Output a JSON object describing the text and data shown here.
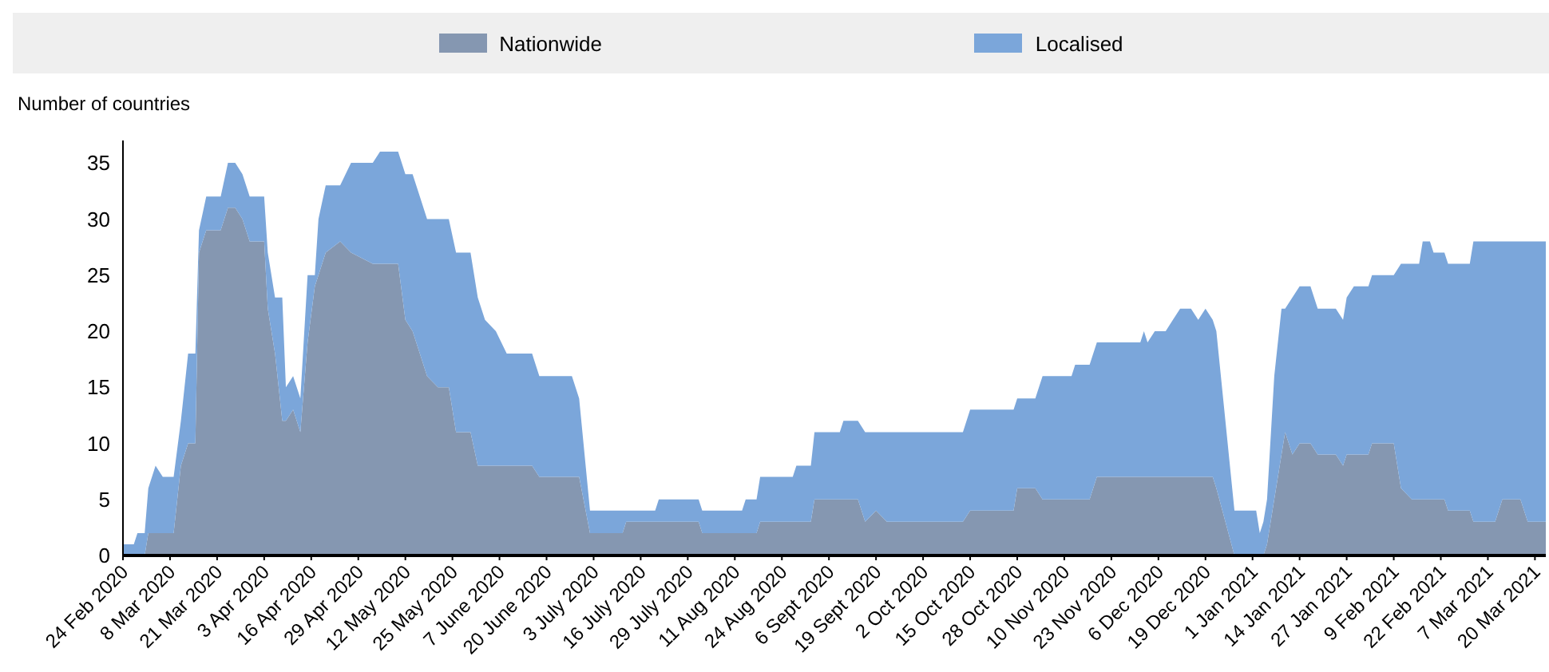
{
  "chart_data": {
    "type": "area",
    "stacked": true,
    "ylabel": "Number of countries",
    "legend": "top",
    "grid": false,
    "x": [
      "2020-02-24",
      "2020-02-27",
      "2020-02-28",
      "2020-03-01",
      "2020-03-02",
      "2020-03-04",
      "2020-03-06",
      "2020-03-09",
      "2020-03-11",
      "2020-03-13",
      "2020-03-15",
      "2020-03-16",
      "2020-03-18",
      "2020-03-22",
      "2020-03-24",
      "2020-03-26",
      "2020-03-28",
      "2020-03-30",
      "2020-04-03",
      "2020-04-04",
      "2020-04-06",
      "2020-04-08",
      "2020-04-09",
      "2020-04-11",
      "2020-04-13",
      "2020-04-15",
      "2020-04-17",
      "2020-04-18",
      "2020-04-20",
      "2020-04-24",
      "2020-04-27",
      "2020-05-03",
      "2020-05-05",
      "2020-05-10",
      "2020-05-12",
      "2020-05-14",
      "2020-05-16",
      "2020-05-18",
      "2020-05-21",
      "2020-05-24",
      "2020-05-26",
      "2020-05-30",
      "2020-06-01",
      "2020-06-03",
      "2020-06-06",
      "2020-06-09",
      "2020-06-16",
      "2020-06-18",
      "2020-06-27",
      "2020-06-29",
      "2020-07-02",
      "2020-07-11",
      "2020-07-12",
      "2020-07-20",
      "2020-07-21",
      "2020-08-01",
      "2020-08-02",
      "2020-08-13",
      "2020-08-14",
      "2020-08-17",
      "2020-08-18",
      "2020-08-27",
      "2020-08-28",
      "2020-09-01",
      "2020-09-02",
      "2020-09-09",
      "2020-09-10",
      "2020-09-14",
      "2020-09-16",
      "2020-09-19",
      "2020-09-22",
      "2020-10-13",
      "2020-10-15",
      "2020-10-27",
      "2020-10-28",
      "2020-11-02",
      "2020-11-04",
      "2020-11-12",
      "2020-11-13",
      "2020-11-17",
      "2020-11-19",
      "2020-12-01",
      "2020-12-02",
      "2020-12-03",
      "2020-12-05",
      "2020-12-08",
      "2020-12-10",
      "2020-12-12",
      "2020-12-15",
      "2020-12-17",
      "2020-12-19",
      "2020-12-21",
      "2020-12-22",
      "2020-12-27",
      "2021-01-02",
      "2021-01-03",
      "2021-01-04",
      "2021-01-05",
      "2021-01-07",
      "2021-01-09",
      "2021-01-10",
      "2021-01-12",
      "2021-01-14",
      "2021-01-17",
      "2021-01-19",
      "2021-01-24",
      "2021-01-26",
      "2021-01-27",
      "2021-01-29",
      "2021-02-02",
      "2021-02-03",
      "2021-02-09",
      "2021-02-11",
      "2021-02-14",
      "2021-02-16",
      "2021-02-17",
      "2021-02-19",
      "2021-02-20",
      "2021-02-23",
      "2021-02-24",
      "2021-03-02",
      "2021-03-03",
      "2021-03-09",
      "2021-03-11",
      "2021-03-16",
      "2021-03-18",
      "2021-03-23"
    ],
    "series": [
      {
        "name": "Nationwide",
        "color": "#8597b1",
        "values": [
          0,
          0,
          0,
          0,
          2,
          2,
          2,
          2,
          8,
          10,
          10,
          27,
          29,
          29,
          31,
          31,
          30,
          28,
          28,
          22,
          18,
          12,
          12,
          13,
          11,
          19,
          24,
          25,
          27,
          28,
          27,
          26,
          26,
          26,
          21,
          20,
          18,
          16,
          15,
          15,
          11,
          11,
          8,
          8,
          8,
          8,
          8,
          7,
          7,
          7,
          2,
          2,
          3,
          3,
          3,
          3,
          2,
          2,
          2,
          2,
          3,
          3,
          3,
          3,
          5,
          5,
          5,
          5,
          3,
          4,
          3,
          3,
          4,
          4,
          6,
          6,
          5,
          5,
          5,
          5,
          7,
          7,
          7,
          7,
          7,
          7,
          7,
          7,
          7,
          7,
          7,
          7,
          6,
          0,
          0,
          0,
          0,
          1,
          5,
          9,
          11,
          9,
          10,
          10,
          9,
          9,
          8,
          9,
          9,
          9,
          10,
          10,
          6,
          5,
          5,
          5,
          5,
          5,
          5,
          4,
          4,
          3,
          3,
          5,
          5,
          3,
          3
        ]
      },
      {
        "name": "Localised",
        "color": "#7ba6da",
        "values": [
          1,
          1,
          2,
          2,
          4,
          6,
          5,
          5,
          4,
          8,
          8,
          2,
          3,
          3,
          4,
          4,
          4,
          4,
          4,
          5,
          5,
          11,
          3,
          3,
          3,
          6,
          1,
          5,
          6,
          5,
          8,
          9,
          10,
          10,
          13,
          14,
          14,
          14,
          15,
          15,
          16,
          16,
          15,
          13,
          12,
          10,
          10,
          9,
          9,
          7,
          2,
          2,
          1,
          1,
          2,
          2,
          2,
          2,
          3,
          3,
          4,
          4,
          5,
          5,
          6,
          6,
          7,
          7,
          8,
          7,
          8,
          8,
          9,
          9,
          8,
          8,
          11,
          11,
          12,
          12,
          12,
          12,
          13,
          12,
          13,
          13,
          14,
          15,
          15,
          14,
          15,
          14,
          14,
          4,
          4,
          2,
          3,
          4,
          11,
          13,
          11,
          14,
          14,
          14,
          13,
          13,
          13,
          14,
          15,
          15,
          15,
          15,
          20,
          21,
          21,
          23,
          23,
          22,
          22,
          22,
          22,
          25,
          25,
          23,
          23,
          25,
          25
        ]
      }
    ],
    "xlim": [
      "2020-02-24",
      "2021-03-23"
    ],
    "xticks": [
      {
        "value": "2020-02-24",
        "label": "24 Feb 2020"
      },
      {
        "value": "2020-03-08",
        "label": "8 Mar 2020"
      },
      {
        "value": "2020-03-21",
        "label": "21 Mar 2020"
      },
      {
        "value": "2020-04-03",
        "label": "3 Apr 2020"
      },
      {
        "value": "2020-04-16",
        "label": "16 Apr 2020"
      },
      {
        "value": "2020-04-29",
        "label": "29 Apr 2020"
      },
      {
        "value": "2020-05-12",
        "label": "12 May 2020"
      },
      {
        "value": "2020-05-25",
        "label": "25 May 2020"
      },
      {
        "value": "2020-06-07",
        "label": "7 June 2020"
      },
      {
        "value": "2020-06-20",
        "label": "20 June 2020"
      },
      {
        "value": "2020-07-03",
        "label": "3 July 2020"
      },
      {
        "value": "2020-07-16",
        "label": "16 July 2020"
      },
      {
        "value": "2020-07-29",
        "label": "29 July 2020"
      },
      {
        "value": "2020-08-11",
        "label": "11 Aug 2020"
      },
      {
        "value": "2020-08-24",
        "label": "24 Aug 2020"
      },
      {
        "value": "2020-09-06",
        "label": "6 Sept 2020"
      },
      {
        "value": "2020-09-19",
        "label": "19 Sept 2020"
      },
      {
        "value": "2020-10-02",
        "label": "2 Oct 2020"
      },
      {
        "value": "2020-10-15",
        "label": "15 Oct 2020"
      },
      {
        "value": "2020-10-28",
        "label": "28 Oct 2020"
      },
      {
        "value": "2020-11-10",
        "label": "10 Nov 2020"
      },
      {
        "value": "2020-11-23",
        "label": "23 Nov 2020"
      },
      {
        "value": "2020-12-06",
        "label": "6 Dec 2020"
      },
      {
        "value": "2020-12-19",
        "label": "19 Dec 2020"
      },
      {
        "value": "2021-01-01",
        "label": "1 Jan 2021"
      },
      {
        "value": "2021-01-14",
        "label": "14 Jan 2021"
      },
      {
        "value": "2021-01-27",
        "label": "27 Jan 2021"
      },
      {
        "value": "2021-02-09",
        "label": "9 Feb 2021"
      },
      {
        "value": "2021-02-22",
        "label": "22 Feb 2021"
      },
      {
        "value": "2021-03-07",
        "label": "7 Mar 2021"
      },
      {
        "value": "2021-03-20",
        "label": "20 Mar 2021"
      }
    ],
    "ylim": [
      0,
      37
    ],
    "yticks": [
      0,
      5,
      10,
      15,
      20,
      25,
      30,
      35
    ]
  }
}
